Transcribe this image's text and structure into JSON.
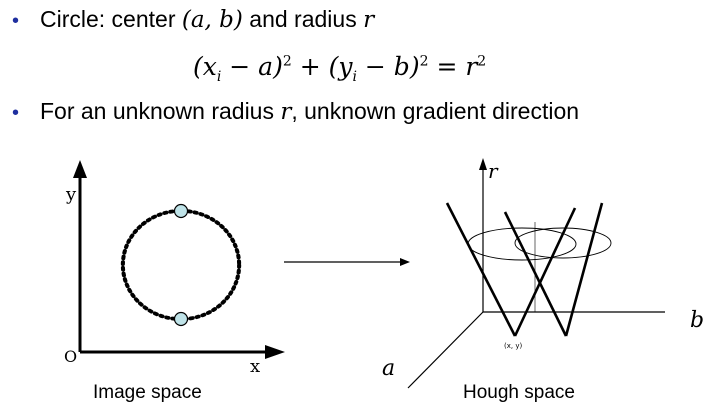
{
  "bullets": [
    {
      "prefix": "Circle: center ",
      "math1": "(a, b)",
      "mid": " and radius ",
      "math2": "r"
    },
    {
      "prefix": "For an unknown radius ",
      "math1": "r",
      "suffix": ", unknown gradient direction"
    }
  ],
  "equation": {
    "part1": "(x",
    "sub1": "i",
    "part2": " − a)",
    "sup1": "2",
    "part3": " + (y",
    "sub2": "i",
    "part4": " − b)",
    "sup2": "2",
    "part5": " = r",
    "sup3": "2"
  },
  "image_space": {
    "y_label": "y",
    "x_label": "x",
    "origin_label": "O",
    "caption": "Image space"
  },
  "hough_space": {
    "r_label": "r",
    "a_label": "a",
    "b_label": "b",
    "point_label": "(x, y)",
    "caption": "Hough space"
  },
  "colors": {
    "bullet": "#1f2f9f",
    "edge_point_fill": "#bfe3e8",
    "line": "#000000"
  }
}
